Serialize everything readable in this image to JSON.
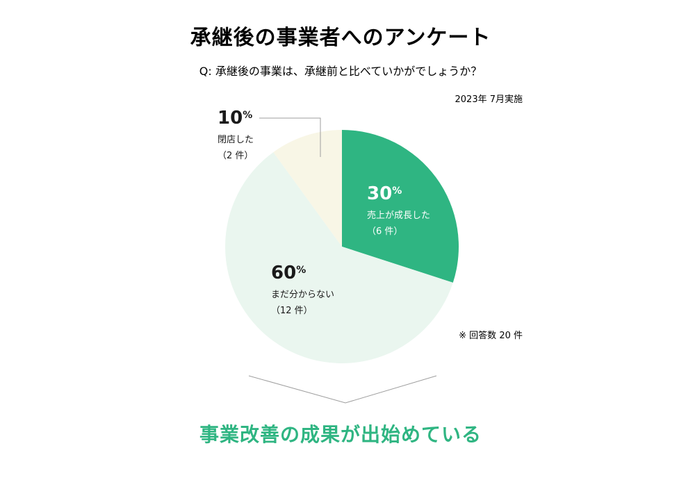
{
  "title": "承継後の事業者へのアンケート",
  "subtitle": "Q: 承継後の事業は、承継前と比べていかがでしょうか？",
  "survey_date": "2023年 7月実施",
  "respondents_note": "※ 回答数 20 件",
  "conclusion": "事業改善の成果が出始めている",
  "colors": {
    "title": "#1a1a1a",
    "conclusion": "#2fb582",
    "leader": "#9e9e9e"
  },
  "chart_data": {
    "type": "pie",
    "start": "12 o'clock, clockwise",
    "slices": [
      {
        "percent": 30,
        "pct_num": "30",
        "pct_sign": "%",
        "label": "売上が成長した",
        "count": "（6 件）",
        "color": "#2fb582",
        "text_color": "#ffffff"
      },
      {
        "percent": 60,
        "pct_num": "60",
        "pct_sign": "%",
        "label": "まだ分からない",
        "count": "（12 件）",
        "color": "#eaf6ef",
        "text_color": "#1a1a1a"
      },
      {
        "percent": 10,
        "pct_num": "10",
        "pct_sign": "%",
        "label": "閉店した",
        "count": "（2 件）",
        "color": "#f8f6e6",
        "text_color": "#1a1a1a"
      }
    ]
  }
}
